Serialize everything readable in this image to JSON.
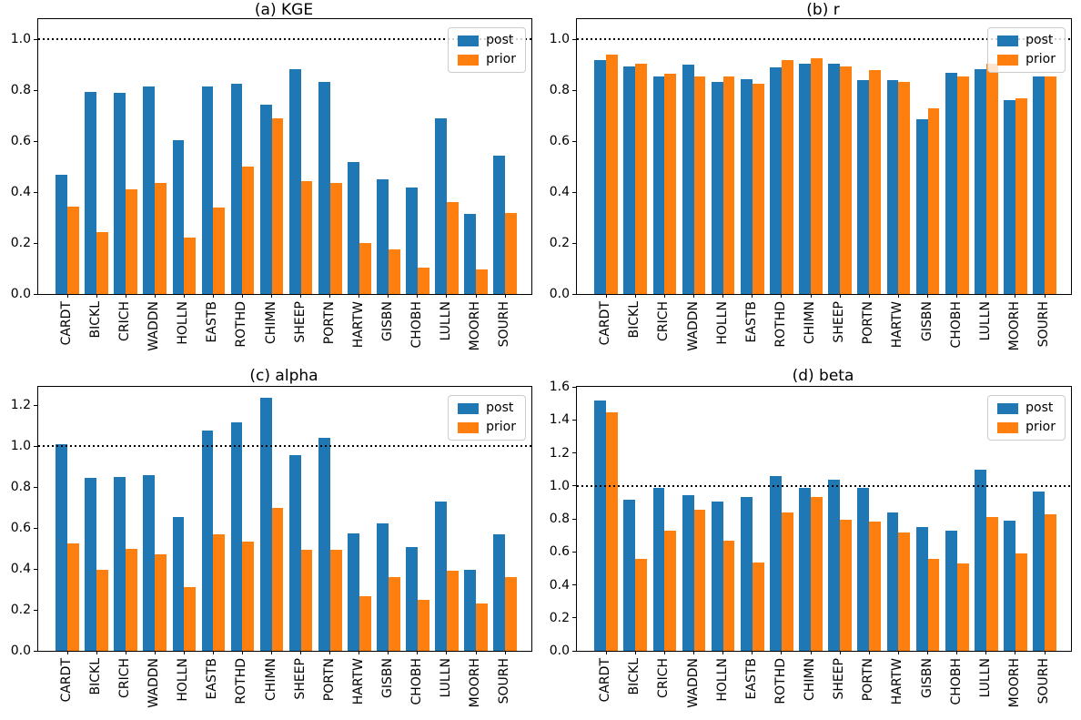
{
  "figure": {
    "background": "#ffffff",
    "axis_color": "#000000",
    "refline_style": "dotted"
  },
  "colors": {
    "post": "#1f77b4",
    "prior": "#ff7f0e",
    "refline": "#000000"
  },
  "legend": {
    "entries": [
      "post",
      "prior"
    ],
    "position": "upper right"
  },
  "chart_data": [
    {
      "id": "a",
      "type": "bar",
      "title": "(a) KGE",
      "categories": [
        "CARDT",
        "BICKL",
        "CRICH",
        "WADDN",
        "HOLLN",
        "EASTB",
        "ROTHD",
        "CHIMN",
        "SHEEP",
        "PORTN",
        "HARTW",
        "GISBN",
        "CHOBH",
        "LULLN",
        "MOORH",
        "SOURH"
      ],
      "series": [
        {
          "name": "post",
          "color": "#1f77b4",
          "values": [
            0.47,
            0.795,
            0.79,
            0.815,
            0.605,
            0.815,
            0.825,
            0.745,
            0.885,
            0.835,
            0.52,
            0.45,
            0.42,
            0.69,
            0.315,
            0.545
          ]
        },
        {
          "name": "prior",
          "color": "#ff7f0e",
          "values": [
            0.345,
            0.245,
            0.41,
            0.435,
            0.22,
            0.34,
            0.5,
            0.69,
            0.445,
            0.435,
            0.2,
            0.175,
            0.105,
            0.36,
            0.095,
            0.32
          ]
        }
      ],
      "ylim": [
        0,
        1.08
      ],
      "yticks": [
        0.0,
        0.2,
        0.4,
        0.6,
        0.8,
        1.0
      ],
      "refline": 1.0,
      "grid": false,
      "legend_position": "upper right"
    },
    {
      "id": "b",
      "type": "bar",
      "title": "(b) r",
      "categories": [
        "CARDT",
        "BICKL",
        "CRICH",
        "WADDN",
        "HOLLN",
        "EASTB",
        "ROTHD",
        "CHIMN",
        "SHEEP",
        "PORTN",
        "HARTW",
        "GISBN",
        "CHOBH",
        "LULLN",
        "MOORH",
        "SOURH"
      ],
      "series": [
        {
          "name": "post",
          "color": "#1f77b4",
          "values": [
            0.92,
            0.895,
            0.855,
            0.9,
            0.835,
            0.845,
            0.89,
            0.905,
            0.905,
            0.84,
            0.84,
            0.685,
            0.87,
            0.885,
            0.76,
            0.855
          ]
        },
        {
          "name": "prior",
          "color": "#ff7f0e",
          "values": [
            0.94,
            0.905,
            0.865,
            0.855,
            0.855,
            0.825,
            0.92,
            0.925,
            0.895,
            0.88,
            0.835,
            0.73,
            0.855,
            0.905,
            0.77,
            0.855
          ]
        }
      ],
      "ylim": [
        0,
        1.08
      ],
      "yticks": [
        0.0,
        0.2,
        0.4,
        0.6,
        0.8,
        1.0
      ],
      "refline": 1.0,
      "grid": false,
      "legend_position": "upper right"
    },
    {
      "id": "c",
      "type": "bar",
      "title": "(c) alpha",
      "categories": [
        "CARDT",
        "BICKL",
        "CRICH",
        "WADDN",
        "HOLLN",
        "EASTB",
        "ROTHD",
        "CHIMN",
        "SHEEP",
        "PORTN",
        "HARTW",
        "GISBN",
        "CHOBH",
        "LULLN",
        "MOORH",
        "SOURH"
      ],
      "series": [
        {
          "name": "post",
          "color": "#1f77b4",
          "values": [
            1.01,
            0.845,
            0.85,
            0.86,
            0.655,
            1.075,
            1.115,
            1.235,
            0.955,
            1.04,
            0.575,
            0.625,
            0.505,
            0.73,
            0.395,
            0.57
          ]
        },
        {
          "name": "prior",
          "color": "#ff7f0e",
          "values": [
            0.525,
            0.395,
            0.5,
            0.47,
            0.31,
            0.57,
            0.535,
            0.7,
            0.495,
            0.495,
            0.265,
            0.36,
            0.25,
            0.39,
            0.23,
            0.36
          ]
        }
      ],
      "ylim": [
        0,
        1.29
      ],
      "yticks": [
        0.0,
        0.2,
        0.4,
        0.6,
        0.8,
        1.0,
        1.2
      ],
      "refline": 1.0,
      "grid": false,
      "legend_position": "upper right"
    },
    {
      "id": "d",
      "type": "bar",
      "title": "(d) beta",
      "categories": [
        "CARDT",
        "BICKL",
        "CRICH",
        "WADDN",
        "HOLLN",
        "EASTB",
        "ROTHD",
        "CHIMN",
        "SHEEP",
        "PORTN",
        "HARTW",
        "GISBN",
        "CHOBH",
        "LULLN",
        "MOORH",
        "SOURH"
      ],
      "series": [
        {
          "name": "post",
          "color": "#1f77b4",
          "values": [
            1.52,
            0.915,
            0.99,
            0.945,
            0.905,
            0.935,
            1.06,
            0.99,
            1.04,
            0.99,
            0.84,
            0.75,
            0.73,
            1.1,
            0.79,
            0.965
          ]
        },
        {
          "name": "prior",
          "color": "#ff7f0e",
          "values": [
            1.445,
            0.56,
            0.73,
            0.855,
            0.665,
            0.535,
            0.84,
            0.935,
            0.795,
            0.785,
            0.72,
            0.555,
            0.53,
            0.81,
            0.59,
            0.83
          ]
        }
      ],
      "ylim": [
        0,
        1.6
      ],
      "yticks": [
        0.0,
        0.2,
        0.4,
        0.6,
        0.8,
        1.0,
        1.2,
        1.4,
        1.6
      ],
      "refline": 1.0,
      "grid": false,
      "legend_position": "upper right"
    }
  ]
}
